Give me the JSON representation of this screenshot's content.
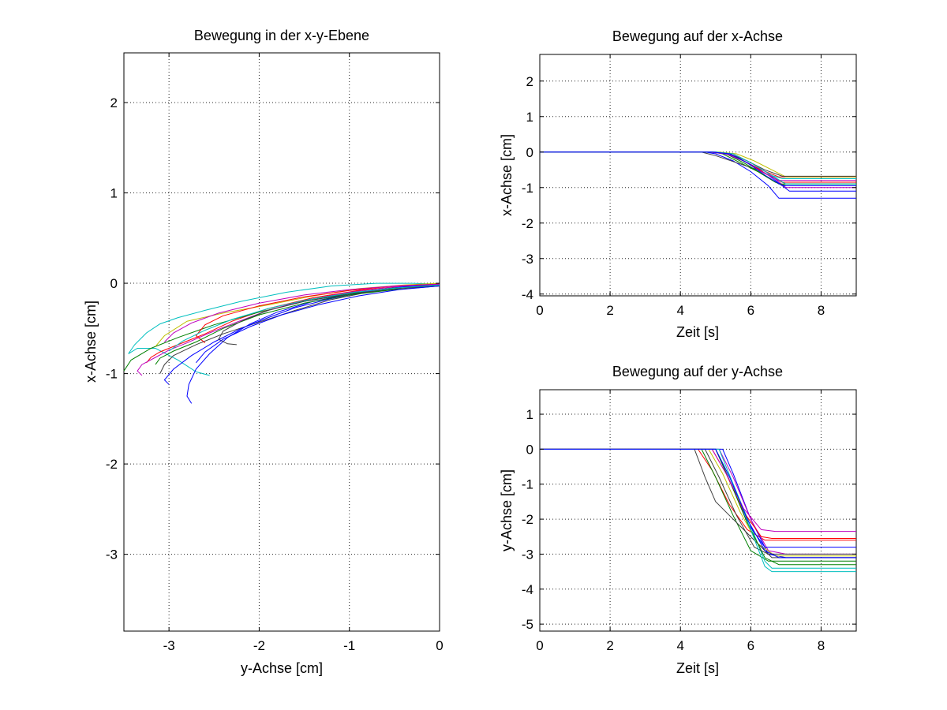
{
  "chart_data": [
    {
      "type": "line",
      "title": "Bewegung in der x-y-Ebene",
      "xlabel": "y-Achse [cm]",
      "ylabel": "x-Achse [cm]",
      "xlim": [
        -3.5,
        0
      ],
      "ylim": [
        -3.85,
        2.55
      ],
      "xticks": [
        -3,
        -2,
        -1,
        0
      ],
      "yticks": [
        -3,
        -2,
        -1,
        0,
        1,
        2
      ],
      "grid": true,
      "series": [
        {
          "color": "#00bfbf",
          "x": [
            0,
            -0.3,
            -0.7,
            -1.2,
            -1.7,
            -2.2,
            -2.6,
            -2.9,
            -3.1,
            -3.25,
            -3.38,
            -3.45,
            -3.35,
            -3.15,
            -2.9,
            -2.7,
            -2.55
          ],
          "y": [
            -0.01,
            0,
            0,
            -0.03,
            -0.1,
            -0.2,
            -0.3,
            -0.38,
            -0.45,
            -0.55,
            -0.68,
            -0.78,
            -0.72,
            -0.72,
            -0.85,
            -0.98,
            -1.02
          ]
        },
        {
          "color": "#0000ff",
          "x": [
            0,
            -0.4,
            -0.9,
            -1.4,
            -1.8,
            -2.1,
            -2.35,
            -2.55,
            -2.7,
            -2.78,
            -2.8,
            -2.75
          ],
          "y": [
            -0.02,
            -0.04,
            -0.1,
            -0.2,
            -0.32,
            -0.45,
            -0.6,
            -0.78,
            -0.95,
            -1.12,
            -1.25,
            -1.33
          ]
        },
        {
          "color": "#ff0000",
          "x": [
            0,
            -0.4,
            -0.9,
            -1.4,
            -1.9,
            -2.3,
            -2.6,
            -2.9,
            -3.1,
            -3.2,
            -3.25
          ],
          "y": [
            0,
            -0.03,
            -0.08,
            -0.16,
            -0.28,
            -0.42,
            -0.56,
            -0.68,
            -0.76,
            -0.82,
            -0.88
          ]
        },
        {
          "color": "#008000",
          "x": [
            0,
            -0.5,
            -1.0,
            -1.5,
            -2.0,
            -2.5,
            -2.9,
            -3.2,
            -3.42,
            -3.5
          ],
          "y": [
            -0.02,
            -0.05,
            -0.11,
            -0.2,
            -0.32,
            -0.46,
            -0.6,
            -0.72,
            -0.85,
            -0.97
          ]
        },
        {
          "color": "#bf00bf",
          "x": [
            0,
            -0.5,
            -1.0,
            -1.5,
            -1.9,
            -2.25,
            -2.55,
            -2.8,
            -3.0,
            -3.15,
            -3.3,
            -3.35,
            -3.3
          ],
          "y": [
            -0.01,
            -0.04,
            -0.1,
            -0.19,
            -0.3,
            -0.43,
            -0.55,
            -0.66,
            -0.74,
            -0.82,
            -0.9,
            -0.97,
            -1.02
          ]
        },
        {
          "color": "#bfbf00",
          "x": [
            0,
            -0.4,
            -0.9,
            -1.4,
            -1.9,
            -2.4,
            -2.8,
            -3.05,
            -3.15
          ],
          "y": [
            0,
            -0.02,
            -0.06,
            -0.14,
            -0.24,
            -0.33,
            -0.42,
            -0.58,
            -0.7
          ]
        },
        {
          "color": "#404040",
          "x": [
            0,
            -0.4,
            -0.8,
            -1.2,
            -1.6,
            -2.0,
            -2.4,
            -2.7,
            -2.95,
            -3.05,
            -3.1
          ],
          "y": [
            -0.02,
            -0.05,
            -0.1,
            -0.18,
            -0.3,
            -0.43,
            -0.56,
            -0.68,
            -0.8,
            -0.9,
            -1.0
          ]
        },
        {
          "color": "#0000ff",
          "x": [
            0,
            -0.4,
            -0.8,
            -1.2,
            -1.6,
            -1.9,
            -2.2,
            -2.5,
            -2.75,
            -2.95,
            -3.05,
            -3.0
          ],
          "y": [
            -0.01,
            -0.04,
            -0.09,
            -0.17,
            -0.27,
            -0.38,
            -0.5,
            -0.65,
            -0.8,
            -0.95,
            -1.07,
            -1.12
          ]
        },
        {
          "color": "#ff0000",
          "x": [
            0,
            -0.5,
            -1.0,
            -1.5,
            -2.0,
            -2.4,
            -2.6,
            -2.7,
            -2.6
          ],
          "y": [
            -0.01,
            -0.03,
            -0.08,
            -0.15,
            -0.25,
            -0.36,
            -0.46,
            -0.58,
            -0.66
          ]
        },
        {
          "color": "#008000",
          "x": [
            0,
            -0.5,
            -1.0,
            -1.5,
            -2.0,
            -2.4,
            -2.7,
            -2.95,
            -3.1,
            -3.15
          ],
          "y": [
            -0.03,
            -0.07,
            -0.13,
            -0.22,
            -0.35,
            -0.5,
            -0.65,
            -0.75,
            -0.83,
            -0.9
          ]
        },
        {
          "color": "#404040",
          "x": [
            0,
            -0.5,
            -1.0,
            -1.5,
            -1.9,
            -2.2,
            -2.4,
            -2.45,
            -2.35,
            -2.25
          ],
          "y": [
            -0.03,
            -0.06,
            -0.12,
            -0.2,
            -0.3,
            -0.42,
            -0.53,
            -0.62,
            -0.67,
            -0.68
          ]
        },
        {
          "color": "#bf00bf",
          "x": [
            0,
            -0.5,
            -1.0,
            -1.5,
            -2.0,
            -2.45,
            -2.75,
            -2.95,
            -3.05
          ],
          "y": [
            -0.01,
            -0.03,
            -0.07,
            -0.13,
            -0.22,
            -0.33,
            -0.44,
            -0.55,
            -0.65
          ]
        },
        {
          "color": "#00bfbf",
          "x": [
            0,
            -0.45,
            -0.95,
            -1.45,
            -1.9,
            -2.3,
            -2.6,
            -2.85,
            -3.0
          ],
          "y": [
            -0.02,
            -0.05,
            -0.1,
            -0.18,
            -0.28,
            -0.4,
            -0.52,
            -0.64,
            -0.75
          ]
        },
        {
          "color": "#0000ff",
          "x": [
            0,
            -0.45,
            -0.9,
            -1.35,
            -1.75,
            -2.1,
            -2.4,
            -2.6,
            -2.7
          ],
          "y": [
            -0.03,
            -0.07,
            -0.14,
            -0.24,
            -0.35,
            -0.48,
            -0.62,
            -0.76,
            -0.88
          ]
        }
      ]
    },
    {
      "type": "line",
      "title": "Bewegung auf der x-Achse",
      "xlabel": "Zeit [s]",
      "ylabel": "x-Achse [cm]",
      "xlim": [
        0,
        9
      ],
      "ylim": [
        -4.05,
        2.75
      ],
      "xticks": [
        0,
        2,
        4,
        6,
        8
      ],
      "yticks": [
        -4,
        -3,
        -2,
        -1,
        0,
        1,
        2
      ],
      "grid": true,
      "series": [
        {
          "color": "#ff0000",
          "x": [
            0,
            4.9,
            5.3,
            5.8,
            6.3,
            6.8,
            9
          ],
          "y": [
            0,
            0,
            -0.05,
            -0.25,
            -0.5,
            -0.7,
            -0.7
          ]
        },
        {
          "color": "#008000",
          "x": [
            0,
            4.9,
            5.2,
            5.7,
            6.2,
            6.7,
            7.0,
            9
          ],
          "y": [
            0,
            0,
            -0.05,
            -0.3,
            -0.55,
            -0.85,
            -0.95,
            -0.95
          ]
        },
        {
          "color": "#0000ff",
          "x": [
            0,
            4.7,
            5.0,
            5.5,
            6.0,
            6.5,
            6.8,
            9
          ],
          "y": [
            0,
            0,
            -0.05,
            -0.25,
            -0.55,
            -0.95,
            -1.3,
            -1.3
          ]
        },
        {
          "color": "#00bfbf",
          "x": [
            0,
            5.0,
            5.4,
            5.9,
            6.4,
            6.9,
            9
          ],
          "y": [
            0,
            0,
            -0.05,
            -0.3,
            -0.6,
            -0.75,
            -0.75
          ]
        },
        {
          "color": "#bf00bf",
          "x": [
            0,
            5.0,
            5.5,
            6.0,
            6.5,
            7.0,
            9
          ],
          "y": [
            0,
            0,
            -0.05,
            -0.3,
            -0.6,
            -1.0,
            -1.0
          ]
        },
        {
          "color": "#bfbf00",
          "x": [
            0,
            5.1,
            5.6,
            6.1,
            6.6,
            7.0,
            9
          ],
          "y": [
            0,
            0,
            -0.05,
            -0.25,
            -0.5,
            -0.7,
            -0.7
          ]
        },
        {
          "color": "#404040",
          "x": [
            0,
            4.6,
            5.0,
            5.6,
            6.2,
            6.7,
            7.0,
            9
          ],
          "y": [
            0,
            0,
            -0.1,
            -0.3,
            -0.5,
            -0.75,
            -0.9,
            -0.9
          ]
        },
        {
          "color": "#0000ff",
          "x": [
            0,
            5.0,
            5.5,
            6.0,
            6.5,
            6.9,
            7.1,
            9
          ],
          "y": [
            0,
            0,
            -0.1,
            -0.35,
            -0.65,
            -0.95,
            -1.1,
            -1.1
          ]
        },
        {
          "color": "#ff0000",
          "x": [
            0,
            4.9,
            5.4,
            5.9,
            6.5,
            6.9,
            9
          ],
          "y": [
            0,
            0,
            -0.05,
            -0.3,
            -0.65,
            -0.85,
            -0.85
          ]
        },
        {
          "color": "#008000",
          "x": [
            0,
            4.8,
            5.3,
            5.8,
            6.3,
            6.8,
            9
          ],
          "y": [
            0,
            0,
            -0.05,
            -0.3,
            -0.6,
            -0.9,
            -0.9
          ]
        },
        {
          "color": "#404040",
          "x": [
            0,
            4.9,
            5.4,
            5.9,
            6.4,
            6.9,
            9
          ],
          "y": [
            0,
            0,
            -0.05,
            -0.25,
            -0.5,
            -0.68,
            -0.68
          ]
        },
        {
          "color": "#bf00bf",
          "x": [
            0,
            4.8,
            5.3,
            5.8,
            6.3,
            6.8,
            9
          ],
          "y": [
            0,
            0,
            -0.05,
            -0.25,
            -0.55,
            -0.8,
            -0.8
          ]
        },
        {
          "color": "#00bfbf",
          "x": [
            0,
            5.0,
            5.5,
            6.0,
            6.5,
            7.0,
            9
          ],
          "y": [
            0,
            0,
            -0.05,
            -0.3,
            -0.6,
            -0.9,
            -0.9
          ]
        },
        {
          "color": "#0000ff",
          "x": [
            0,
            4.9,
            5.4,
            5.9,
            6.4,
            6.9,
            9
          ],
          "y": [
            0,
            0,
            -0.05,
            -0.3,
            -0.65,
            -0.95,
            -0.95
          ]
        }
      ]
    },
    {
      "type": "line",
      "title": "Bewegung auf der y-Achse",
      "xlabel": "Zeit [s]",
      "ylabel": "y-Achse [cm]",
      "xlim": [
        0,
        9
      ],
      "ylim": [
        -5.2,
        1.7
      ],
      "xticks": [
        0,
        2,
        4,
        6,
        8
      ],
      "yticks": [
        -5,
        -4,
        -3,
        -2,
        -1,
        0,
        1
      ],
      "grid": true,
      "series": [
        {
          "color": "#ff0000",
          "x": [
            0,
            4.5,
            4.9,
            5.4,
            5.9,
            6.4,
            6.8,
            9
          ],
          "y": [
            0,
            0,
            -0.6,
            -1.6,
            -2.3,
            -2.6,
            -2.6,
            -2.6
          ]
        },
        {
          "color": "#008000",
          "x": [
            0,
            4.6,
            5.0,
            5.5,
            6.0,
            6.5,
            9
          ],
          "y": [
            0,
            0,
            -0.8,
            -1.9,
            -2.9,
            -3.2,
            -3.2
          ]
        },
        {
          "color": "#0000ff",
          "x": [
            0,
            5.2,
            5.5,
            6.0,
            6.5,
            7.0,
            9
          ],
          "y": [
            0,
            0,
            -0.7,
            -2.0,
            -3.0,
            -3.1,
            -3.1
          ]
        },
        {
          "color": "#00bfbf",
          "x": [
            0,
            5.0,
            5.5,
            6.0,
            6.4,
            6.6,
            9
          ],
          "y": [
            0,
            0,
            -1.0,
            -2.2,
            -3.2,
            -3.4,
            -3.4
          ]
        },
        {
          "color": "#bf00bf",
          "x": [
            0,
            5.1,
            5.5,
            6.0,
            6.5,
            7.0,
            9
          ],
          "y": [
            0,
            0,
            -0.8,
            -2.0,
            -2.9,
            -3.0,
            -3.0
          ]
        },
        {
          "color": "#bfbf00",
          "x": [
            0,
            4.8,
            5.2,
            5.7,
            6.2,
            6.7,
            9
          ],
          "y": [
            0,
            0,
            -0.7,
            -1.8,
            -2.7,
            -3.05,
            -3.05
          ]
        },
        {
          "color": "#404040",
          "x": [
            0,
            4.4,
            4.7,
            5.0,
            5.4,
            5.8,
            6.2,
            6.6,
            9
          ],
          "y": [
            0,
            0,
            -0.8,
            -1.5,
            -1.9,
            -2.3,
            -2.7,
            -3.1,
            -3.1
          ]
        },
        {
          "color": "#0000ff",
          "x": [
            0,
            5.0,
            5.4,
            5.9,
            6.4,
            6.8,
            9
          ],
          "y": [
            0,
            0,
            -0.9,
            -2.1,
            -2.8,
            -2.8,
            -2.8
          ]
        },
        {
          "color": "#ff0000",
          "x": [
            0,
            4.9,
            5.3,
            5.8,
            6.3,
            6.6,
            9
          ],
          "y": [
            0,
            0,
            -0.7,
            -1.8,
            -2.5,
            -2.55,
            -2.55
          ]
        },
        {
          "color": "#008000",
          "x": [
            0,
            5.0,
            5.4,
            5.9,
            6.4,
            6.8,
            9
          ],
          "y": [
            0,
            0,
            -0.9,
            -2.1,
            -3.1,
            -3.3,
            -3.3
          ]
        },
        {
          "color": "#404040",
          "x": [
            0,
            4.7,
            5.1,
            5.6,
            6.1,
            6.5,
            9
          ],
          "y": [
            0,
            0,
            -0.8,
            -1.9,
            -2.8,
            -3.0,
            -3.0
          ]
        },
        {
          "color": "#bf00bf",
          "x": [
            0,
            4.9,
            5.3,
            5.8,
            6.3,
            6.7,
            9
          ],
          "y": [
            0,
            0,
            -0.7,
            -1.7,
            -2.3,
            -2.35,
            -2.35
          ]
        },
        {
          "color": "#00bfbf",
          "x": [
            0,
            5.1,
            5.5,
            6.0,
            6.4,
            6.6,
            9
          ],
          "y": [
            0,
            0,
            -1.0,
            -2.3,
            -3.35,
            -3.5,
            -3.5
          ]
        },
        {
          "color": "#0000ff",
          "x": [
            0,
            5.0,
            5.4,
            5.9,
            6.4,
            6.8,
            9
          ],
          "y": [
            0,
            0,
            -0.8,
            -2.0,
            -2.9,
            -3.1,
            -3.1
          ]
        }
      ]
    }
  ]
}
